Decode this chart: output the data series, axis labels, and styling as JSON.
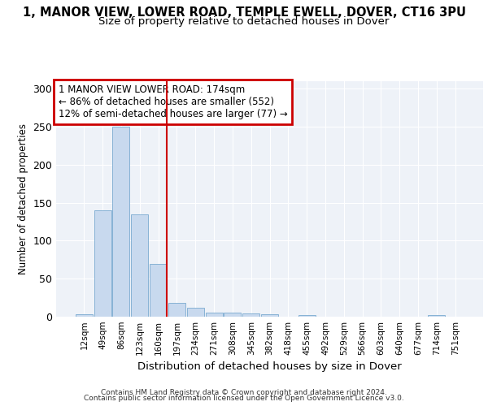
{
  "title": "1, MANOR VIEW, LOWER ROAD, TEMPLE EWELL, DOVER, CT16 3PU",
  "subtitle": "Size of property relative to detached houses in Dover",
  "xlabel": "Distribution of detached houses by size in Dover",
  "ylabel": "Number of detached properties",
  "bin_labels": [
    "12sqm",
    "49sqm",
    "86sqm",
    "123sqm",
    "160sqm",
    "197sqm",
    "234sqm",
    "271sqm",
    "308sqm",
    "345sqm",
    "382sqm",
    "418sqm",
    "455sqm",
    "492sqm",
    "529sqm",
    "566sqm",
    "603sqm",
    "640sqm",
    "677sqm",
    "714sqm",
    "751sqm"
  ],
  "bar_values": [
    3,
    140,
    250,
    135,
    70,
    18,
    12,
    5,
    5,
    4,
    3,
    0,
    2,
    0,
    0,
    0,
    0,
    0,
    0,
    2,
    0
  ],
  "bar_color": "#c8d9ee",
  "bar_edgecolor": "#7aaad0",
  "vline_index": 4,
  "vline_color": "#cc0000",
  "annotation_text": "1 MANOR VIEW LOWER ROAD: 174sqm\n← 86% of detached houses are smaller (552)\n12% of semi-detached houses are larger (77) →",
  "annotation_box_edgecolor": "#cc0000",
  "annotation_box_facecolor": "#ffffff",
  "footer1": "Contains HM Land Registry data © Crown copyright and database right 2024.",
  "footer2": "Contains public sector information licensed under the Open Government Licence v3.0.",
  "ylim": [
    0,
    310
  ],
  "yticks": [
    0,
    50,
    100,
    150,
    200,
    250,
    300
  ],
  "bg_color": "#eef2f8",
  "title_fontsize": 10.5,
  "subtitle_fontsize": 9.5
}
